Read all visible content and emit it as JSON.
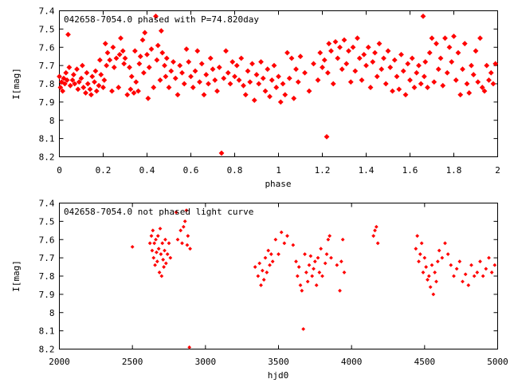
{
  "chart_data": [
    {
      "type": "scatter",
      "title": "042658-7054.0 phased with P=74.820day",
      "xlabel": "phase",
      "ylabel": "I[mag]",
      "xlim": [
        0,
        2
      ],
      "ylim": [
        8.2,
        7.4
      ],
      "y_inverted": true,
      "x_ticks": [
        "0",
        "0.2",
        "0.4",
        "0.6",
        "0.8",
        "1",
        "1.2",
        "1.4",
        "1.6",
        "1.8",
        "2"
      ],
      "y_ticks": [
        "7.4",
        "7.5",
        "7.6",
        "7.7",
        "7.8",
        "7.9",
        "8",
        "8.1",
        "8.2"
      ],
      "marker_color": "#ff0000",
      "marker": "filled-diamond",
      "grid": false,
      "points": [
        [
          0.0,
          7.76
        ],
        [
          0.005,
          7.82
        ],
        [
          0.01,
          7.79
        ],
        [
          0.015,
          7.84
        ],
        [
          0.02,
          7.77
        ],
        [
          0.025,
          7.8
        ],
        [
          0.03,
          7.74
        ],
        [
          0.035,
          7.78
        ],
        [
          0.04,
          7.53
        ],
        [
          0.045,
          7.71
        ],
        [
          0.05,
          7.81
        ],
        [
          0.06,
          7.78
        ],
        [
          0.065,
          7.75
        ],
        [
          0.07,
          7.8
        ],
        [
          0.08,
          7.72
        ],
        [
          0.085,
          7.83
        ],
        [
          0.09,
          7.79
        ],
        [
          0.1,
          7.77
        ],
        [
          0.105,
          7.7
        ],
        [
          0.11,
          7.82
        ],
        [
          0.12,
          7.85
        ],
        [
          0.125,
          7.74
        ],
        [
          0.13,
          7.8
        ],
        [
          0.14,
          7.83
        ],
        [
          0.145,
          7.86
        ],
        [
          0.15,
          7.76
        ],
        [
          0.16,
          7.79
        ],
        [
          0.165,
          7.73
        ],
        [
          0.17,
          7.84
        ],
        [
          0.18,
          7.81
        ],
        [
          0.185,
          7.67
        ],
        [
          0.19,
          7.75
        ],
        [
          0.2,
          7.82
        ],
        [
          0.205,
          7.78
        ],
        [
          0.21,
          7.58
        ],
        [
          0.215,
          7.7
        ],
        [
          0.22,
          7.63
        ],
        [
          0.23,
          7.67
        ],
        [
          0.24,
          7.84
        ],
        [
          0.245,
          7.6
        ],
        [
          0.25,
          7.71
        ],
        [
          0.26,
          7.66
        ],
        [
          0.27,
          7.82
        ],
        [
          0.275,
          7.64
        ],
        [
          0.28,
          7.55
        ],
        [
          0.29,
          7.62
        ],
        [
          0.295,
          7.69
        ],
        [
          0.3,
          7.66
        ],
        [
          0.31,
          7.86
        ],
        [
          0.32,
          7.71
        ],
        [
          0.325,
          7.83
        ],
        [
          0.33,
          7.76
        ],
        [
          0.34,
          7.85
        ],
        [
          0.345,
          7.62
        ],
        [
          0.35,
          7.79
        ],
        [
          0.36,
          7.84
        ],
        [
          0.365,
          7.69
        ],
        [
          0.37,
          7.65
        ],
        [
          0.38,
          7.56
        ],
        [
          0.385,
          7.74
        ],
        [
          0.39,
          7.52
        ],
        [
          0.4,
          7.64
        ],
        [
          0.405,
          7.88
        ],
        [
          0.41,
          7.71
        ],
        [
          0.42,
          7.61
        ],
        [
          0.43,
          7.82
        ],
        [
          0.44,
          7.43
        ],
        [
          0.445,
          7.67
        ],
        [
          0.45,
          7.59
        ],
        [
          0.46,
          7.78
        ],
        [
          0.465,
          7.51
        ],
        [
          0.47,
          7.63
        ],
        [
          0.48,
          7.7
        ],
        [
          0.485,
          7.76
        ],
        [
          0.49,
          7.66
        ],
        [
          0.5,
          7.82
        ],
        [
          0.51,
          7.73
        ],
        [
          0.52,
          7.68
        ],
        [
          0.53,
          7.77
        ],
        [
          0.54,
          7.86
        ],
        [
          0.55,
          7.7
        ],
        [
          0.56,
          7.74
        ],
        [
          0.57,
          7.8
        ],
        [
          0.58,
          7.61
        ],
        [
          0.59,
          7.68
        ],
        [
          0.6,
          7.76
        ],
        [
          0.61,
          7.82
        ],
        [
          0.62,
          7.73
        ],
        [
          0.63,
          7.62
        ],
        [
          0.64,
          7.79
        ],
        [
          0.65,
          7.69
        ],
        [
          0.66,
          7.86
        ],
        [
          0.67,
          7.75
        ],
        [
          0.68,
          7.8
        ],
        [
          0.69,
          7.66
        ],
        [
          0.7,
          7.72
        ],
        [
          0.71,
          7.78
        ],
        [
          0.72,
          7.84
        ],
        [
          0.73,
          7.71
        ],
        [
          0.74,
          8.18
        ],
        [
          0.75,
          7.77
        ],
        [
          0.76,
          7.62
        ],
        [
          0.77,
          7.74
        ],
        [
          0.78,
          7.8
        ],
        [
          0.79,
          7.68
        ],
        [
          0.8,
          7.76
        ],
        [
          0.81,
          7.7
        ],
        [
          0.82,
          7.78
        ],
        [
          0.83,
          7.66
        ],
        [
          0.84,
          7.81
        ],
        [
          0.85,
          7.86
        ],
        [
          0.86,
          7.73
        ],
        [
          0.87,
          7.79
        ],
        [
          0.88,
          7.69
        ],
        [
          0.89,
          7.89
        ],
        [
          0.9,
          7.75
        ],
        [
          0.91,
          7.8
        ],
        [
          0.92,
          7.68
        ],
        [
          0.93,
          7.77
        ],
        [
          0.94,
          7.84
        ],
        [
          0.95,
          7.72
        ],
        [
          0.96,
          7.87
        ],
        [
          0.97,
          7.78
        ],
        [
          0.98,
          7.7
        ],
        [
          0.99,
          7.82
        ],
        [
          1.0,
          7.76
        ],
        [
          1.01,
          7.9
        ],
        [
          1.02,
          7.8
        ],
        [
          1.03,
          7.86
        ],
        [
          1.04,
          7.63
        ],
        [
          1.05,
          7.77
        ],
        [
          1.06,
          7.66
        ],
        [
          1.07,
          7.88
        ],
        [
          1.08,
          7.72
        ],
        [
          1.09,
          7.79
        ],
        [
          1.1,
          7.65
        ],
        [
          1.12,
          7.74
        ],
        [
          1.14,
          7.84
        ],
        [
          1.16,
          7.69
        ],
        [
          1.18,
          7.78
        ],
        [
          1.19,
          7.63
        ],
        [
          1.2,
          7.71
        ],
        [
          1.21,
          7.67
        ],
        [
          1.22,
          8.09
        ],
        [
          1.225,
          7.74
        ],
        [
          1.23,
          7.58
        ],
        [
          1.24,
          7.62
        ],
        [
          1.25,
          7.8
        ],
        [
          1.26,
          7.57
        ],
        [
          1.27,
          7.66
        ],
        [
          1.28,
          7.6
        ],
        [
          1.29,
          7.72
        ],
        [
          1.3,
          7.56
        ],
        [
          1.31,
          7.69
        ],
        [
          1.32,
          7.62
        ],
        [
          1.33,
          7.79
        ],
        [
          1.34,
          7.6
        ],
        [
          1.35,
          7.73
        ],
        [
          1.36,
          7.55
        ],
        [
          1.37,
          7.66
        ],
        [
          1.38,
          7.78
        ],
        [
          1.39,
          7.64
        ],
        [
          1.4,
          7.7
        ],
        [
          1.41,
          7.6
        ],
        [
          1.42,
          7.82
        ],
        [
          1.43,
          7.68
        ],
        [
          1.44,
          7.63
        ],
        [
          1.45,
          7.76
        ],
        [
          1.46,
          7.58
        ],
        [
          1.47,
          7.72
        ],
        [
          1.48,
          7.66
        ],
        [
          1.49,
          7.8
        ],
        [
          1.5,
          7.62
        ],
        [
          1.51,
          7.71
        ],
        [
          1.52,
          7.84
        ],
        [
          1.53,
          7.67
        ],
        [
          1.54,
          7.76
        ],
        [
          1.55,
          7.83
        ],
        [
          1.56,
          7.64
        ],
        [
          1.57,
          7.73
        ],
        [
          1.58,
          7.86
        ],
        [
          1.59,
          7.69
        ],
        [
          1.6,
          7.78
        ],
        [
          1.61,
          7.66
        ],
        [
          1.62,
          7.82
        ],
        [
          1.63,
          7.74
        ],
        [
          1.64,
          7.7
        ],
        [
          1.65,
          7.8
        ],
        [
          1.66,
          7.43
        ],
        [
          1.665,
          7.76
        ],
        [
          1.67,
          7.68
        ],
        [
          1.68,
          7.82
        ],
        [
          1.69,
          7.63
        ],
        [
          1.7,
          7.55
        ],
        [
          1.71,
          7.79
        ],
        [
          1.72,
          7.58
        ],
        [
          1.73,
          7.72
        ],
        [
          1.74,
          7.66
        ],
        [
          1.75,
          7.81
        ],
        [
          1.76,
          7.55
        ],
        [
          1.77,
          7.74
        ],
        [
          1.78,
          7.6
        ],
        [
          1.79,
          7.68
        ],
        [
          1.8,
          7.54
        ],
        [
          1.81,
          7.78
        ],
        [
          1.82,
          7.63
        ],
        [
          1.83,
          7.86
        ],
        [
          1.84,
          7.72
        ],
        [
          1.85,
          7.58
        ],
        [
          1.86,
          7.8
        ],
        [
          1.87,
          7.85
        ],
        [
          1.88,
          7.7
        ],
        [
          1.89,
          7.75
        ],
        [
          1.9,
          7.62
        ],
        [
          1.91,
          7.79
        ],
        [
          1.92,
          7.55
        ],
        [
          1.93,
          7.82
        ],
        [
          1.94,
          7.84
        ],
        [
          1.95,
          7.7
        ],
        [
          1.96,
          7.78
        ],
        [
          1.97,
          7.74
        ],
        [
          1.98,
          7.8
        ],
        [
          1.99,
          7.69
        ]
      ]
    },
    {
      "type": "scatter",
      "title": "042658-7054.0 not phased light curve",
      "xlabel": "hjd0",
      "ylabel": "I[mag]",
      "xlim": [
        2000,
        5000
      ],
      "ylim": [
        8.2,
        7.4
      ],
      "y_inverted": true,
      "x_ticks": [
        "2000",
        "2500",
        "3000",
        "3500",
        "4000",
        "4500",
        "5000"
      ],
      "y_ticks": [
        "7.4",
        "7.5",
        "7.6",
        "7.7",
        "7.8",
        "7.9",
        "8",
        "8.1",
        "8.2"
      ],
      "marker_color": "#ff0000",
      "marker": "filled-diamond",
      "grid": false,
      "points": [
        [
          2500,
          7.64
        ],
        [
          2620,
          7.62
        ],
        [
          2630,
          7.58
        ],
        [
          2635,
          7.66
        ],
        [
          2640,
          7.55
        ],
        [
          2645,
          7.7
        ],
        [
          2650,
          7.62
        ],
        [
          2655,
          7.74
        ],
        [
          2660,
          7.6
        ],
        [
          2665,
          7.67
        ],
        [
          2670,
          7.72
        ],
        [
          2675,
          7.58
        ],
        [
          2680,
          7.65
        ],
        [
          2685,
          7.78
        ],
        [
          2690,
          7.54
        ],
        [
          2695,
          7.68
        ],
        [
          2700,
          7.8
        ],
        [
          2705,
          7.62
        ],
        [
          2710,
          7.71
        ],
        [
          2715,
          7.75
        ],
        [
          2720,
          7.66
        ],
        [
          2725,
          7.6
        ],
        [
          2730,
          7.73
        ],
        [
          2740,
          7.68
        ],
        [
          2750,
          7.62
        ],
        [
          2760,
          7.7
        ],
        [
          2800,
          7.45
        ],
        [
          2810,
          7.6
        ],
        [
          2830,
          7.55
        ],
        [
          2840,
          7.62
        ],
        [
          2850,
          7.53
        ],
        [
          2860,
          7.5
        ],
        [
          2870,
          7.44
        ],
        [
          2875,
          7.63
        ],
        [
          2880,
          7.58
        ],
        [
          2890,
          8.19
        ],
        [
          2895,
          7.65
        ],
        [
          3340,
          7.75
        ],
        [
          3360,
          7.8
        ],
        [
          3370,
          7.73
        ],
        [
          3380,
          7.85
        ],
        [
          3390,
          7.77
        ],
        [
          3400,
          7.82
        ],
        [
          3410,
          7.7
        ],
        [
          3420,
          7.78
        ],
        [
          3430,
          7.66
        ],
        [
          3440,
          7.74
        ],
        [
          3450,
          7.68
        ],
        [
          3460,
          7.72
        ],
        [
          3480,
          7.6
        ],
        [
          3500,
          7.68
        ],
        [
          3520,
          7.56
        ],
        [
          3540,
          7.62
        ],
        [
          3560,
          7.58
        ],
        [
          3600,
          7.63
        ],
        [
          3620,
          7.72
        ],
        [
          3630,
          7.8
        ],
        [
          3640,
          7.75
        ],
        [
          3650,
          7.85
        ],
        [
          3660,
          7.88
        ],
        [
          3670,
          8.09
        ],
        [
          3680,
          7.68
        ],
        [
          3690,
          7.78
        ],
        [
          3700,
          7.83
        ],
        [
          3710,
          7.74
        ],
        [
          3720,
          7.69
        ],
        [
          3730,
          7.8
        ],
        [
          3740,
          7.76
        ],
        [
          3750,
          7.72
        ],
        [
          3760,
          7.85
        ],
        [
          3770,
          7.7
        ],
        [
          3780,
          7.78
        ],
        [
          3790,
          7.65
        ],
        [
          3800,
          7.8
        ],
        [
          3820,
          7.73
        ],
        [
          3830,
          7.68
        ],
        [
          3840,
          7.6
        ],
        [
          3850,
          7.58
        ],
        [
          3860,
          7.7
        ],
        [
          3900,
          7.74
        ],
        [
          3920,
          7.88
        ],
        [
          3930,
          7.72
        ],
        [
          3940,
          7.6
        ],
        [
          3950,
          7.78
        ],
        [
          4150,
          7.58
        ],
        [
          4160,
          7.55
        ],
        [
          4170,
          7.53
        ],
        [
          4180,
          7.62
        ],
        [
          4440,
          7.65
        ],
        [
          4450,
          7.58
        ],
        [
          4460,
          7.72
        ],
        [
          4470,
          7.68
        ],
        [
          4480,
          7.62
        ],
        [
          4490,
          7.78
        ],
        [
          4500,
          7.7
        ],
        [
          4510,
          7.75
        ],
        [
          4520,
          7.82
        ],
        [
          4530,
          7.8
        ],
        [
          4540,
          7.86
        ],
        [
          4550,
          7.74
        ],
        [
          4560,
          7.9
        ],
        [
          4570,
          7.78
        ],
        [
          4580,
          7.83
        ],
        [
          4590,
          7.72
        ],
        [
          4600,
          7.66
        ],
        [
          4620,
          7.7
        ],
        [
          4640,
          7.62
        ],
        [
          4660,
          7.68
        ],
        [
          4680,
          7.74
        ],
        [
          4700,
          7.8
        ],
        [
          4720,
          7.76
        ],
        [
          4740,
          7.72
        ],
        [
          4760,
          7.83
        ],
        [
          4780,
          7.79
        ],
        [
          4800,
          7.85
        ],
        [
          4820,
          7.74
        ],
        [
          4840,
          7.8
        ],
        [
          4860,
          7.78
        ],
        [
          4880,
          7.72
        ],
        [
          4900,
          7.8
        ],
        [
          4920,
          7.76
        ],
        [
          4940,
          7.7
        ],
        [
          4960,
          7.78
        ],
        [
          4980,
          7.74
        ]
      ]
    }
  ]
}
